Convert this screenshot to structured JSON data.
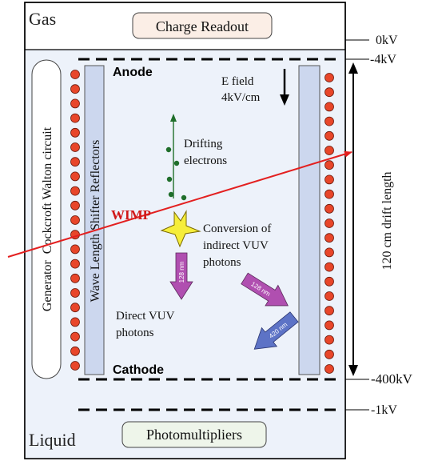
{
  "regions": {
    "gas": "Gas",
    "liquid": "Liquid"
  },
  "boxes": {
    "charge_readout": "Charge Readout",
    "photomultipliers": "Photomultipliers"
  },
  "electrodes": {
    "anode": "Anode",
    "cathode": "Cathode"
  },
  "voltages": {
    "v0": "0kV",
    "v4": "-4kV",
    "v400": "-400kV",
    "v1": "-1kV"
  },
  "side_labels": {
    "generator": "Generator  Cockcroft Walton circuit",
    "reflectors": "Wave Length Shifter Reflectors",
    "drift_length": "120 cm drift length"
  },
  "annotations": {
    "efield_line1": "E field",
    "efield_line2": "4kV/cm",
    "drifting_line1": "Drifting",
    "drifting_line2": "electrons",
    "wimp": "WIMP",
    "conversion_line1": "Conversion of",
    "conversion_line2": "indirect VUV",
    "conversion_line3": "photons",
    "direct_line1": "Direct VUV",
    "direct_line2": "photons"
  },
  "photons": {
    "p128_down": "128 nm",
    "p128_diag": "128 nm",
    "p420": "420 nm"
  },
  "colors": {
    "vessel_fill": "#edf2fa",
    "inner_fill": "#e4ecf8",
    "charge_box": "#fbeee6",
    "pmt_box": "#eef5ea",
    "dot_fill": "#e8462a",
    "wimp_line": "#e32020",
    "wimp_text": "#d01818",
    "star": "#f6ee3a",
    "track": "#1f6e2a",
    "electron": "#1f6e2a",
    "photon_128": "#b04fb0",
    "photon_420": "#5d73c6",
    "panel_fill": "#ccd7ee"
  }
}
